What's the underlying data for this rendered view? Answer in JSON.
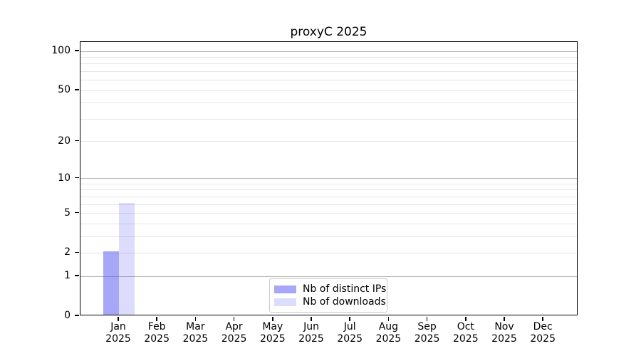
{
  "title": "proxyC 2025",
  "chart_data": {
    "type": "bar",
    "title": "proxyC 2025",
    "categories": [
      "Jan 2025",
      "Feb 2025",
      "Mar 2025",
      "Apr 2025",
      "May 2025",
      "Jun 2025",
      "Jul 2025",
      "Aug 2025",
      "Sep 2025",
      "Oct 2025",
      "Nov 2025",
      "Dec 2025"
    ],
    "series": [
      {
        "name": "Nb of distinct IPs",
        "color": "rgba(80,80,240,0.5)",
        "values": [
          2,
          0,
          0,
          0,
          0,
          0,
          0,
          0,
          0,
          0,
          0,
          0
        ]
      },
      {
        "name": "Nb of downloads",
        "color": "rgba(80,80,240,0.2)",
        "values": [
          6,
          0,
          0,
          0,
          0,
          0,
          0,
          0,
          0,
          0,
          0,
          0
        ]
      }
    ],
    "xlabel": "",
    "ylabel": "",
    "y_axis": {
      "scale": "log1p",
      "axis_top_value": 117.7,
      "labeled_ticks": [
        0,
        1,
        2,
        5,
        10,
        20,
        50,
        100
      ],
      "major_gridlines": [
        1,
        10,
        100
      ],
      "minor_gridlines": [
        2,
        3,
        4,
        5,
        6,
        7,
        8,
        9,
        20,
        30,
        40,
        50,
        60,
        70,
        80,
        90
      ]
    },
    "grid": true,
    "legend_position": "lower center",
    "legend_items": [
      "Nb of distinct IPs",
      "Nb of downloads"
    ]
  },
  "colors": {
    "background": "#ffffff",
    "bar_distinct_ips": "rgba(80,80,240,0.5)",
    "bar_downloads": "rgba(80,80,240,0.2)",
    "grid_major": "#b3b3b3",
    "grid_minor": "#e6e6e6",
    "axis_line": "#000000",
    "legend_border": "#c9c9c9",
    "text": "#000000"
  }
}
